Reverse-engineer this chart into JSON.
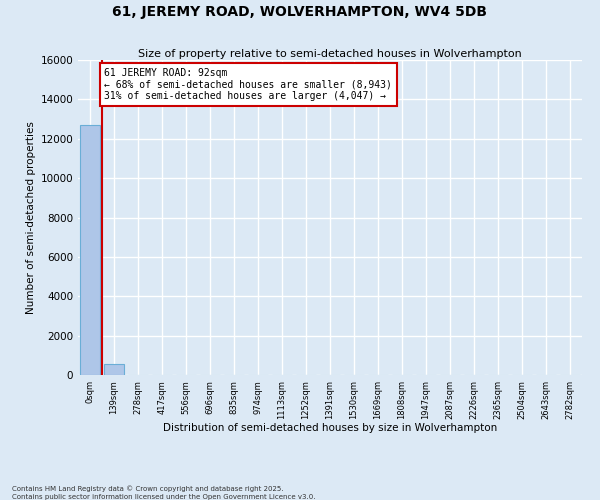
{
  "title": "61, JEREMY ROAD, WOLVERHAMPTON, WV4 5DB",
  "subtitle": "Size of property relative to semi-detached houses in Wolverhampton",
  "xlabel": "Distribution of semi-detached houses by size in Wolverhampton",
  "ylabel": "Number of semi-detached properties",
  "bin_labels": [
    "0sqm",
    "139sqm",
    "278sqm",
    "417sqm",
    "556sqm",
    "696sqm",
    "835sqm",
    "974sqm",
    "1113sqm",
    "1252sqm",
    "1391sqm",
    "1530sqm",
    "1669sqm",
    "1808sqm",
    "1947sqm",
    "2087sqm",
    "2226sqm",
    "2365sqm",
    "2504sqm",
    "2643sqm",
    "2782sqm"
  ],
  "bar_heights": [
    12700,
    570,
    0,
    0,
    0,
    0,
    0,
    0,
    0,
    0,
    0,
    0,
    0,
    0,
    0,
    0,
    0,
    0,
    0,
    0,
    0
  ],
  "bar_color": "#aec6e8",
  "bar_edge_color": "#6aaed6",
  "annotation_title": "61 JEREMY ROAD: 92sqm",
  "annotation_line1": "← 68% of semi-detached houses are smaller (8,943)",
  "annotation_line2": "31% of semi-detached houses are larger (4,047) →",
  "annotation_box_color": "#ffffff",
  "annotation_box_edge_color": "#cc0000",
  "vline_color": "#cc0000",
  "ylim": [
    0,
    16000
  ],
  "yticks": [
    0,
    2000,
    4000,
    6000,
    8000,
    10000,
    12000,
    14000,
    16000
  ],
  "background_color": "#dce9f5",
  "grid_color": "#ffffff",
  "footer_line1": "Contains HM Land Registry data © Crown copyright and database right 2025.",
  "footer_line2": "Contains public sector information licensed under the Open Government Licence v3.0."
}
